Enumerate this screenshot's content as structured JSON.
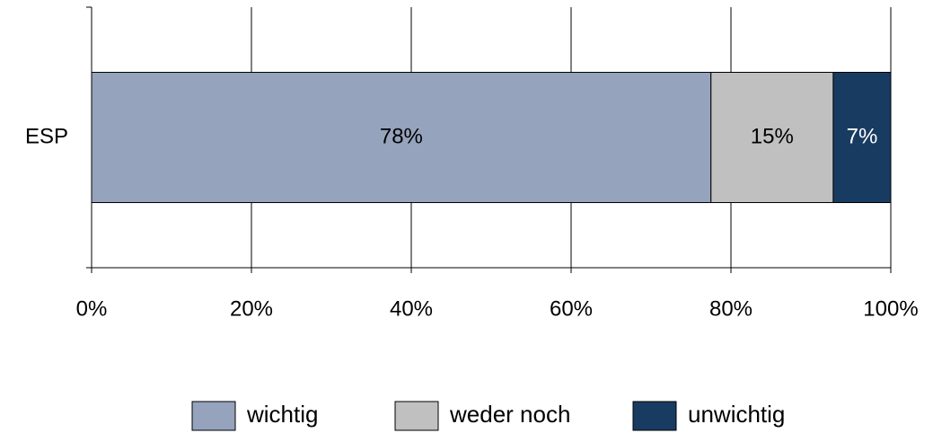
{
  "chart_data": {
    "type": "stacked_bar_horizontal",
    "categories": [
      "ESP"
    ],
    "series": [
      {
        "name": "wichtig",
        "color": "#95a3bd",
        "values": [
          77.5
        ],
        "value_labels": [
          "78%"
        ]
      },
      {
        "name": "weder noch",
        "color": "#c0c0c0",
        "values": [
          15.3
        ],
        "value_labels": [
          "15%"
        ]
      },
      {
        "name": "unwichtig",
        "color": "#183b62",
        "values": [
          7.2
        ],
        "value_labels": [
          "7%"
        ]
      }
    ],
    "xlim": [
      0,
      100
    ],
    "xticks": [
      {
        "value": 0,
        "label": "0%"
      },
      {
        "value": 20,
        "label": "20%"
      },
      {
        "value": 40,
        "label": "40%"
      },
      {
        "value": 60,
        "label": "60%"
      },
      {
        "value": 80,
        "label": "80%"
      },
      {
        "value": 100,
        "label": "100%"
      }
    ],
    "grid": true,
    "legend": "bottom"
  }
}
